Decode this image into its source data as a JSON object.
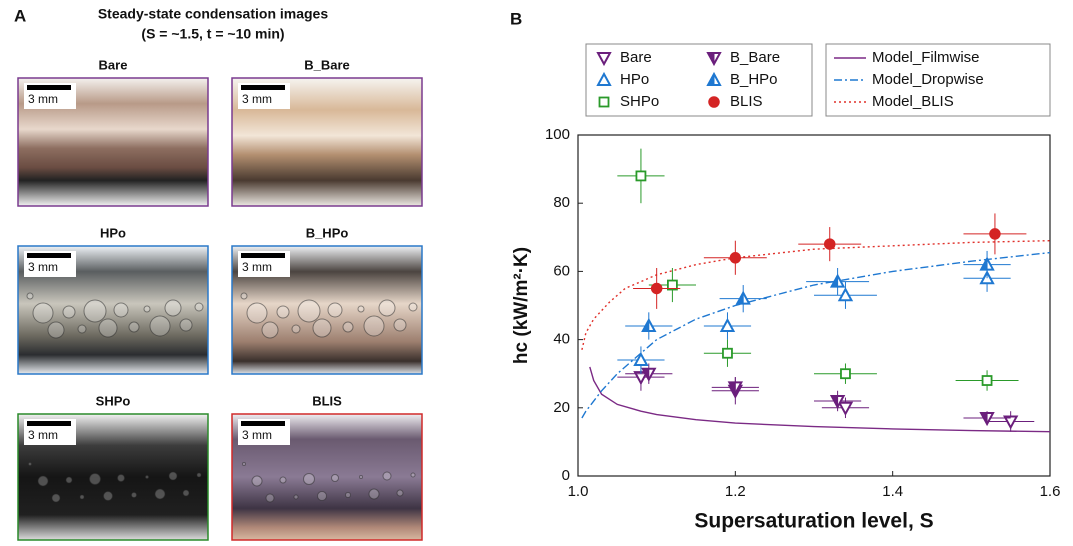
{
  "panel_a": {
    "label": "A",
    "title": "Steady-state condensation images",
    "subtitle": "(S = ~1.5, t = ~10 min)",
    "scale_bar": "3 mm",
    "images": [
      {
        "label": "Bare"
      },
      {
        "label": "B_Bare"
      },
      {
        "label": "HPo"
      },
      {
        "label": "B_HPo"
      },
      {
        "label": "SHPo"
      },
      {
        "label": "BLIS"
      }
    ]
  },
  "chart_data": {
    "type": "scatter",
    "panel_label": "B",
    "y_label": "hc (kW/m²·K)",
    "x_label": "Supersaturation level, S",
    "xlim": [
      1.0,
      1.6
    ],
    "xticks": [
      {
        "value": 1.0,
        "label": "1.0"
      },
      {
        "value": 1.2,
        "label": "1.2"
      },
      {
        "value": 1.4,
        "label": "1.4"
      },
      {
        "value": 1.6,
        "label": "1.6"
      }
    ],
    "ylim": [
      0,
      100
    ],
    "yticks": [
      0,
      20,
      40,
      60,
      80,
      100
    ],
    "legend_position": "top",
    "series": [
      {
        "name": "Bare",
        "color": "#6b1f7c",
        "marker": "triangle-down",
        "fill": "open",
        "x": [
          1.08,
          1.2,
          1.34,
          1.55
        ],
        "values": [
          29,
          25,
          20,
          16
        ],
        "xerr": [
          0.03,
          0.03,
          0.03,
          0.03
        ],
        "yerr": [
          4,
          4,
          3,
          3
        ]
      },
      {
        "name": "B_Bare",
        "color": "#6b1f7c",
        "marker": "triangle-down",
        "fill": "half",
        "x": [
          1.09,
          1.2,
          1.33,
          1.52
        ],
        "values": [
          30,
          26,
          22,
          17
        ],
        "xerr": [
          0.03,
          0.03,
          0.03,
          0.03
        ],
        "yerr": [
          3,
          3,
          3,
          2
        ]
      },
      {
        "name": "HPo",
        "color": "#1f78d1",
        "marker": "triangle-up",
        "fill": "open",
        "x": [
          1.08,
          1.19,
          1.34,
          1.52
        ],
        "values": [
          34,
          44,
          53,
          58
        ],
        "xerr": [
          0.03,
          0.03,
          0.04,
          0.03
        ],
        "yerr": [
          4,
          4,
          4,
          4
        ]
      },
      {
        "name": "B_HPo",
        "color": "#1f78d1",
        "marker": "triangle-up",
        "fill": "half",
        "x": [
          1.09,
          1.21,
          1.33,
          1.52
        ],
        "values": [
          44,
          52,
          57,
          62
        ],
        "xerr": [
          0.03,
          0.03,
          0.04,
          0.03
        ],
        "yerr": [
          4,
          4,
          4,
          4
        ]
      },
      {
        "name": "SHPo",
        "color": "#2a9a2a",
        "marker": "square",
        "fill": "open",
        "x": [
          1.08,
          1.12,
          1.19,
          1.34,
          1.52
        ],
        "values": [
          88,
          56,
          36,
          30,
          28
        ],
        "xerr": [
          0.03,
          0.03,
          0.03,
          0.04,
          0.04
        ],
        "yerr": [
          8,
          5,
          4,
          3,
          3
        ]
      },
      {
        "name": "BLIS",
        "color": "#d42424",
        "marker": "circle",
        "fill": "filled",
        "x": [
          1.1,
          1.2,
          1.32,
          1.53
        ],
        "values": [
          55,
          64,
          68,
          71
        ],
        "xerr": [
          0.03,
          0.04,
          0.04,
          0.04
        ],
        "yerr": [
          6,
          5,
          5,
          6
        ]
      }
    ],
    "model_lines": [
      {
        "name": "Model_Filmwise",
        "color": "#7b2a85",
        "dash": "solid",
        "x": [
          1.015,
          1.02,
          1.03,
          1.05,
          1.08,
          1.1,
          1.15,
          1.2,
          1.3,
          1.4,
          1.5,
          1.6
        ],
        "values": [
          32,
          28,
          24,
          21,
          19,
          18,
          16.5,
          15.5,
          14.5,
          13.8,
          13.3,
          13
        ]
      },
      {
        "name": "Model_Dropwise",
        "color": "#1f78d1",
        "dash": "dashdot",
        "x": [
          1.005,
          1.01,
          1.03,
          1.05,
          1.08,
          1.1,
          1.15,
          1.2,
          1.3,
          1.4,
          1.5,
          1.6
        ],
        "values": [
          17,
          19,
          25,
          30,
          36,
          40,
          46,
          50,
          56,
          60,
          63,
          65.5
        ]
      },
      {
        "name": "Model_BLIS",
        "color": "#e0302a",
        "dash": "dot",
        "x": [
          1.005,
          1.01,
          1.02,
          1.04,
          1.06,
          1.1,
          1.15,
          1.2,
          1.3,
          1.4,
          1.5,
          1.6
        ],
        "values": [
          37,
          42,
          46,
          51,
          55,
          59,
          62,
          64,
          66.5,
          67.5,
          68.5,
          69
        ]
      }
    ]
  }
}
